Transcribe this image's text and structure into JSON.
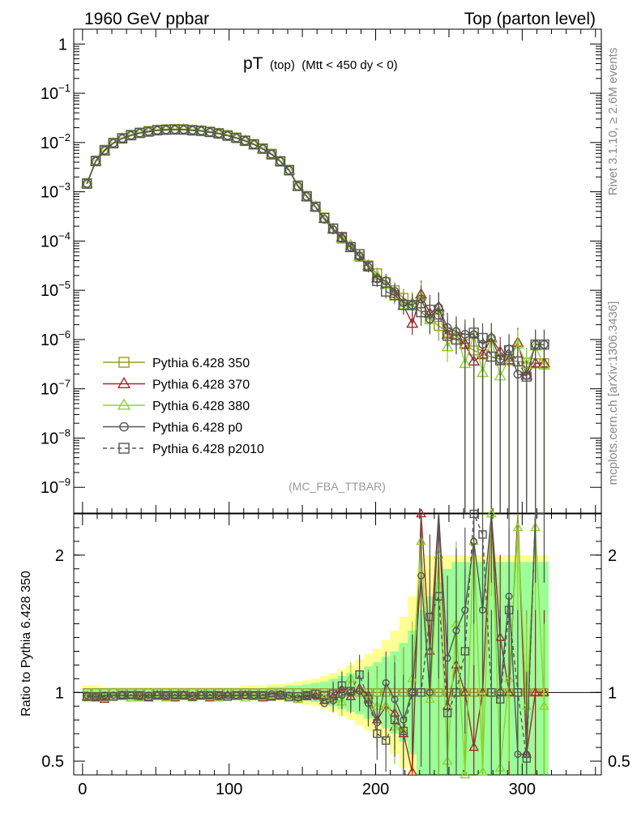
{
  "header": {
    "left": "1960 GeV ppbar",
    "right": "Top (parton level)"
  },
  "side_labels": {
    "rivet": "Rivet 3.1.10, ≥ 2.6M events",
    "mcplots": "mcplots.cern.ch [arXiv:1306.3436]"
  },
  "chart_data": {
    "type": "line",
    "title_main": "pT",
    "title_sub": "(top)",
    "title_cut": "(Mtt < 450 dy < 0)",
    "watermark": "(MC_FBA_TTBAR)",
    "ylabel_ratio": "Ratio to Pythia 6.428 350",
    "y_scale": "log",
    "ylim": [
      3e-10,
      2
    ],
    "ratio_ylim": [
      0.4,
      2.3
    ],
    "xlim": [
      -6,
      354
    ],
    "x_ticks": [
      0,
      100,
      200,
      300
    ],
    "y_ticks": [
      {
        "v": 1,
        "base": "1",
        "exp": ""
      },
      {
        "v": 0.1,
        "base": "10",
        "exp": "−1"
      },
      {
        "v": 0.01,
        "base": "10",
        "exp": "−2"
      },
      {
        "v": 0.001,
        "base": "10",
        "exp": "−3"
      },
      {
        "v": 0.0001,
        "base": "10",
        "exp": "−4"
      },
      {
        "v": 1e-05,
        "base": "10",
        "exp": "−5"
      },
      {
        "v": 1e-06,
        "base": "10",
        "exp": "−6"
      },
      {
        "v": 1e-07,
        "base": "10",
        "exp": "−7"
      },
      {
        "v": 1e-08,
        "base": "10",
        "exp": "−8"
      },
      {
        "v": 1e-09,
        "base": "10",
        "exp": "−9"
      }
    ],
    "ratio_ticks": [
      {
        "v": 0.5,
        "label": "0.5"
      },
      {
        "v": 1,
        "label": "1"
      },
      {
        "v": 2,
        "label": "2"
      }
    ],
    "x": [
      3,
      9,
      15,
      21,
      27,
      33,
      39,
      45,
      51,
      57,
      63,
      69,
      75,
      81,
      87,
      93,
      99,
      105,
      111,
      117,
      123,
      129,
      135,
      141,
      147,
      153,
      159,
      165,
      171,
      177,
      183,
      189,
      195,
      201,
      207,
      213,
      219,
      225,
      231,
      237,
      243,
      249,
      255,
      261,
      267,
      273,
      279,
      285,
      291,
      297,
      303,
      309,
      315
    ],
    "reference": [
      0.0015,
      0.0043,
      0.0071,
      0.0099,
      0.0123,
      0.0143,
      0.0159,
      0.0171,
      0.018,
      0.0185,
      0.0187,
      0.0186,
      0.0181,
      0.0175,
      0.0166,
      0.0155,
      0.0141,
      0.0126,
      0.011,
      0.0093,
      0.0076,
      0.0059,
      0.0042,
      0.0028,
      0.00135,
      0.00082,
      0.0005,
      0.0003,
      0.00018,
      0.000115,
      7.5e-05,
      4.8e-05,
      3.2e-05,
      2.2e-05,
      1.45e-05,
      1e-05,
      7e-06,
      5e-06,
      3.6e-06,
      2.6e-06,
      1.9e-06,
      1.4e-06,
      1e-06,
      8e-07,
      6e-07,
      5e-07,
      4.5e-07,
      4e-07,
      3.8e-07,
      3.6e-07,
      3.4e-07,
      3.3e-07,
      3.3e-07
    ],
    "band_outer": [
      0.05,
      0.05,
      0.04,
      0.04,
      0.04,
      0.04,
      0.04,
      0.04,
      0.04,
      0.04,
      0.04,
      0.04,
      0.04,
      0.04,
      0.04,
      0.04,
      0.04,
      0.04,
      0.05,
      0.05,
      0.05,
      0.06,
      0.06,
      0.07,
      0.08,
      0.09,
      0.1,
      0.12,
      0.14,
      0.17,
      0.2,
      0.24,
      0.28,
      0.32,
      0.38,
      0.45,
      0.55,
      0.7,
      0.9,
      1.0,
      1.0,
      1.0,
      1.0,
      1.0,
      1.0,
      1.0,
      1.0,
      1.0,
      1.0,
      1.0,
      1.0,
      1.0,
      1.0
    ],
    "band_inner": [
      0.03,
      0.03,
      0.03,
      0.03,
      0.03,
      0.03,
      0.03,
      0.03,
      0.03,
      0.03,
      0.03,
      0.03,
      0.03,
      0.03,
      0.03,
      0.03,
      0.03,
      0.03,
      0.03,
      0.03,
      0.03,
      0.04,
      0.04,
      0.05,
      0.05,
      0.06,
      0.07,
      0.08,
      0.1,
      0.12,
      0.14,
      0.16,
      0.19,
      0.22,
      0.26,
      0.3,
      0.36,
      0.45,
      0.6,
      0.7,
      0.8,
      0.9,
      0.95,
      0.95,
      0.95,
      0.95,
      0.95,
      0.95,
      0.95,
      0.95,
      0.95,
      0.95,
      0.95
    ],
    "series": [
      {
        "name": "Pythia 6.428 350",
        "color": "#9a9a2a",
        "marker": "square",
        "dash": false,
        "ratio": [
          1.0,
          1.0,
          1.0,
          1.0,
          1.0,
          1.0,
          1.0,
          1.0,
          1.0,
          1.0,
          1.0,
          1.0,
          1.0,
          1.0,
          1.0,
          1.0,
          1.0,
          1.0,
          1.0,
          1.0,
          1.0,
          1.0,
          1.0,
          1.0,
          1.0,
          1.0,
          1.0,
          1.0,
          1.0,
          1.0,
          1.0,
          1.0,
          1.0,
          1.0,
          1.0,
          1.0,
          1.0,
          1.0,
          1.0,
          1.0,
          1.0,
          1.0,
          1.0,
          1.0,
          1.0,
          1.0,
          1.0,
          1.0,
          1.0,
          1.0,
          1.0,
          1.0,
          1.0
        ]
      },
      {
        "name": "Pythia 6.428 370",
        "color": "#a02828",
        "marker": "triangle",
        "dash": false,
        "ratio": [
          0.97,
          0.96,
          0.95,
          0.97,
          0.98,
          0.96,
          0.97,
          0.96,
          0.98,
          0.97,
          0.96,
          0.98,
          0.97,
          0.98,
          0.96,
          0.97,
          0.98,
          0.97,
          0.98,
          0.97,
          0.96,
          0.97,
          0.98,
          0.96,
          0.95,
          0.97,
          0.98,
          0.94,
          0.97,
          1.02,
          0.97,
          1.03,
          0.98,
          0.8,
          0.9,
          0.85,
          0.7,
          0.42,
          2.3,
          1.3,
          2.4,
          0.9,
          1.2,
          1.0,
          0.6,
          1.0,
          2.4,
          1.4,
          1.0,
          2.4,
          0.55,
          1.0,
          1.0
        ]
      },
      {
        "name": "Pythia 6.428 380",
        "color": "#8ed42a",
        "marker": "triangle",
        "dash": false,
        "ratio": [
          0.96,
          0.97,
          0.96,
          0.97,
          0.97,
          0.96,
          0.96,
          0.97,
          0.97,
          0.96,
          0.97,
          0.97,
          0.96,
          0.97,
          0.97,
          0.96,
          0.97,
          0.97,
          0.96,
          0.97,
          0.97,
          0.98,
          0.97,
          0.96,
          0.95,
          0.98,
          0.99,
          0.96,
          0.95,
          0.93,
          1.1,
          1.0,
          0.95,
          0.9,
          0.9,
          0.75,
          0.72,
          1.1,
          2.1,
          0.95,
          2.0,
          0.5,
          1.5,
          0.4,
          2.1,
          0.42,
          2.3,
          0.45,
          1.1,
          2.2,
          0.9,
          2.2,
          0.9
        ]
      },
      {
        "name": "Pythia 6.428 p0",
        "color": "#555555",
        "marker": "circle",
        "dash": false,
        "ratio": [
          0.98,
          0.97,
          0.98,
          0.98,
          0.98,
          0.98,
          0.98,
          0.98,
          0.98,
          0.98,
          0.98,
          0.98,
          0.98,
          0.98,
          0.98,
          0.98,
          0.98,
          0.98,
          0.98,
          0.98,
          0.98,
          0.99,
          0.99,
          0.98,
          0.96,
          0.98,
          0.97,
          0.92,
          0.94,
          0.98,
          1.0,
          1.01,
          0.92,
          0.78,
          1.07,
          0.95,
          0.8,
          1.0,
          1.85,
          1.0,
          2.35,
          1.25,
          1.45,
          1.6,
          2.1,
          1.6,
          2.4,
          1.0,
          1.7,
          0.55,
          0.55,
          2.4,
          2.4
        ]
      },
      {
        "name": "Pythia 6.428 p2010",
        "color": "#555555",
        "marker": "square",
        "dash": true,
        "ratio": [
          0.97,
          0.97,
          0.97,
          0.97,
          0.98,
          0.98,
          0.98,
          0.97,
          0.98,
          0.98,
          0.98,
          0.98,
          0.97,
          0.98,
          0.98,
          0.98,
          0.97,
          0.98,
          0.98,
          0.98,
          0.98,
          0.97,
          0.98,
          0.97,
          0.97,
          0.98,
          0.99,
          0.98,
          0.99,
          1.05,
          1.01,
          1.13,
          0.95,
          0.7,
          0.65,
          0.8,
          0.72,
          1.0,
          1.0,
          1.55,
          1.7,
          0.85,
          1.0,
          1.3,
          2.3,
          2.15,
          1.0,
          0.95,
          1.6,
          1.0,
          0.52,
          2.4,
          2.4
        ]
      }
    ]
  }
}
